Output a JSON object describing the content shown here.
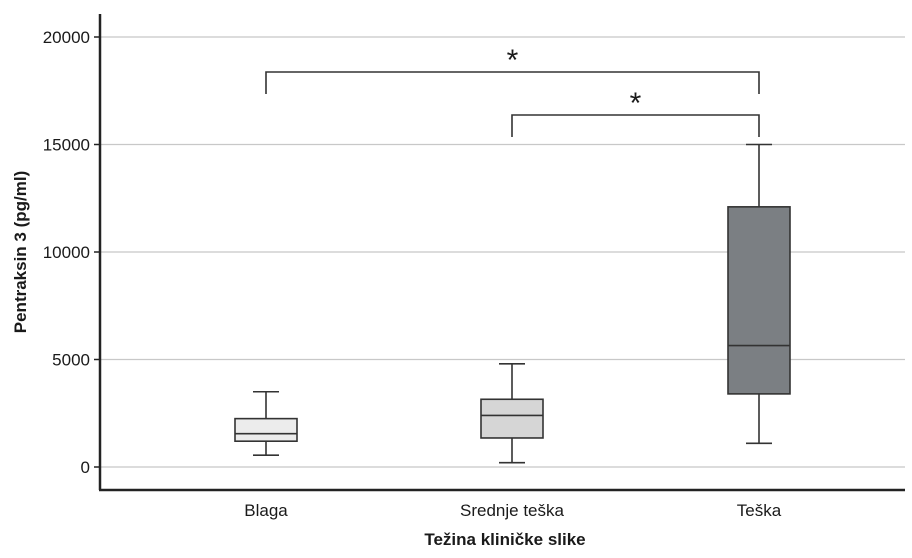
{
  "chart_data": {
    "type": "box",
    "xlabel": "Težina kliničke slike",
    "ylabel": "Pentraksin 3 (pg/ml)",
    "ylim": [
      0,
      20000
    ],
    "yticks": [
      "0",
      "5000",
      "10000",
      "15000",
      "20000"
    ],
    "grid": true,
    "categories": [
      "Blaga",
      "Srednje teška",
      "Teška"
    ],
    "boxes": [
      {
        "category": "Blaga",
        "min": 550,
        "q1": 1200,
        "median": 1550,
        "q3": 2250,
        "max": 3500,
        "color": "#ececec"
      },
      {
        "category": "Srednje teška",
        "min": 200,
        "q1": 1350,
        "median": 2400,
        "q3": 3150,
        "max": 4800,
        "color": "#d6d6d6"
      },
      {
        "category": "Teška",
        "min": 1100,
        "q1": 3400,
        "median": 5650,
        "q3": 12100,
        "max": 15000,
        "color": "#7b7f83"
      }
    ],
    "significance": [
      {
        "from": "Blaga",
        "to": "Teška",
        "label": "*"
      },
      {
        "from": "Srednje teška",
        "to": "Teška",
        "label": "*"
      }
    ]
  }
}
